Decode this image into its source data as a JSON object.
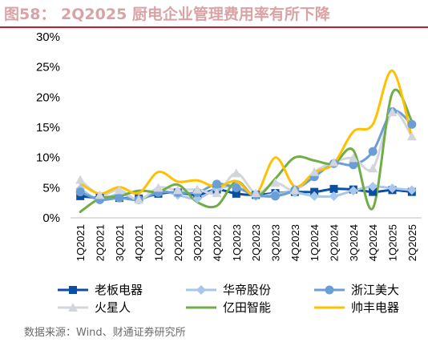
{
  "header": {
    "title": "图58：   2Q2025 厨电企业管理费用率有所下降"
  },
  "source": "数据来源：Wind、财通证券研究所",
  "chart_data": {
    "type": "line",
    "y_axis": {
      "ylim": [
        0,
        30
      ],
      "ticks": [
        0,
        5,
        10,
        15,
        20,
        25,
        30
      ],
      "tick_labels": [
        "0%",
        "5%",
        "10%",
        "15%",
        "20%",
        "25%",
        "30%"
      ]
    },
    "categories": [
      "1Q2021",
      "2Q2021",
      "3Q2021",
      "4Q2021",
      "1Q2022",
      "2Q2022",
      "3Q2022",
      "4Q2022",
      "1Q2023",
      "2Q2023",
      "3Q2023",
      "4Q2023",
      "1Q2024",
      "2Q2024",
      "3Q2024",
      "4Q2024",
      "1Q2025",
      "2Q2025"
    ],
    "grid": false,
    "legend_position": "bottom",
    "series": [
      {
        "name": "老板电器",
        "color": "#0b4fa3",
        "marker": "square",
        "values": [
          3.6,
          3.3,
          3.3,
          3.2,
          4.0,
          4.2,
          3.8,
          4.7,
          4.0,
          3.8,
          4.1,
          4.3,
          4.3,
          4.8,
          4.7,
          4.3,
          4.6,
          4.3
        ]
      },
      {
        "name": "华帝股份",
        "color": "#a9c7ea",
        "marker": "diamond",
        "values": [
          4.8,
          3.0,
          4.0,
          3.1,
          4.5,
          3.8,
          3.2,
          4.8,
          5.2,
          3.6,
          4.0,
          4.2,
          3.6,
          3.6,
          4.5,
          5.2,
          4.9,
          4.6
        ]
      },
      {
        "name": "浙江美大",
        "color": "#6b9ed4",
        "marker": "circle",
        "values": [
          4.3,
          3.0,
          3.3,
          3.0,
          4.2,
          4.2,
          4.2,
          5.6,
          5.0,
          3.8,
          3.6,
          4.6,
          6.8,
          9.0,
          8.8,
          11.0,
          17.6,
          15.5
        ]
      },
      {
        "name": "火星人",
        "color": "#d2d6dc",
        "marker": "triangle",
        "values": [
          6.3,
          3.8,
          4.6,
          3.0,
          5.0,
          4.6,
          4.7,
          4.1,
          7.4,
          4.1,
          5.8,
          4.6,
          7.6,
          9.2,
          9.9,
          8.2,
          17.5,
          13.5
        ]
      },
      {
        "name": "亿田智能",
        "color": "#70ad47",
        "marker": "none",
        "values": [
          1.0,
          3.2,
          3.6,
          4.5,
          4.3,
          5.5,
          2.6,
          2.0,
          6.0,
          3.5,
          6.5,
          10.0,
          9.5,
          9.0,
          11.2,
          1.6,
          20.7,
          16.0
        ]
      },
      {
        "name": "帅丰电器",
        "color": "#ffc000",
        "marker": "none",
        "values": [
          5.7,
          4.0,
          5.1,
          4.1,
          7.6,
          6.0,
          6.2,
          5.1,
          6.1,
          3.9,
          10.0,
          5.2,
          7.5,
          9.0,
          14.3,
          15.5,
          24.4,
          13.3
        ]
      }
    ]
  }
}
